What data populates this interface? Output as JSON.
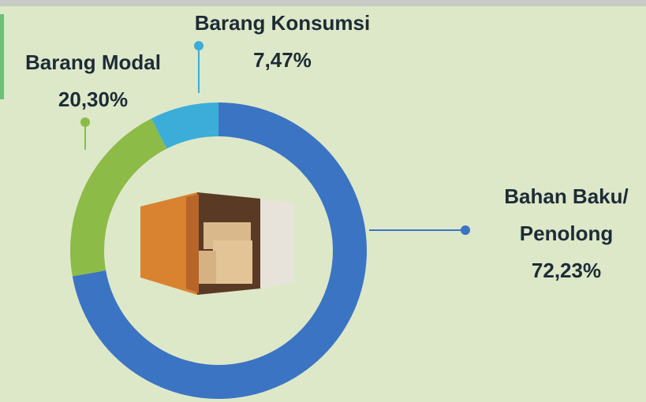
{
  "chart_data": {
    "type": "pie",
    "hole": true,
    "categories": [
      "Bahan Baku/ Penolong",
      "Barang Modal",
      "Barang Konsumsi"
    ],
    "values": [
      72.23,
      20.3,
      7.47
    ],
    "value_labels": [
      "72,23%",
      "20,30%",
      "7,47%"
    ],
    "colors": [
      "#3b74c2",
      "#8cbb47",
      "#3badd8"
    ]
  }
}
